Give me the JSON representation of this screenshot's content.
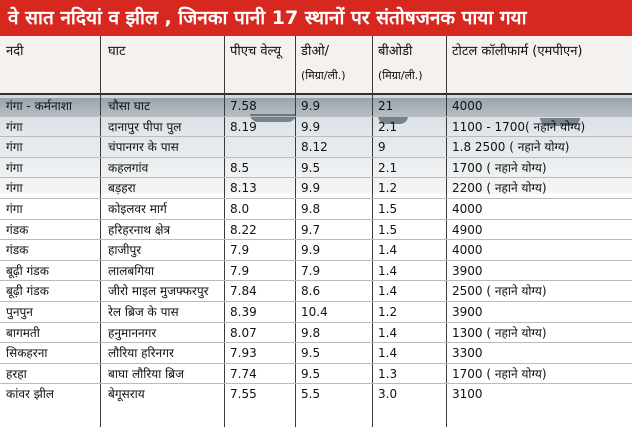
{
  "title": "वे सात नदियां व झील , जिनका पानी 17 स्थानों पर संतोषजनक पाया गया",
  "columns": {
    "river": "नदी",
    "ghat": "घाट",
    "ph": "पीएच वेल्यू",
    "do_line1": "डीओ/",
    "do_line2": "(मिग्रा/ली.)",
    "bod_line1": "बीओडी",
    "bod_line2": "(मिग्रा/ली.)",
    "coliform": "टोटल कॉलीफार्म (एमपीएन)"
  },
  "rows": [
    {
      "river": "गंगा - कर्मनाशा",
      "ghat": "चौसा घाट",
      "ph": "7.58",
      "do": "9.9",
      "bod": "21",
      "coliform": "4000"
    },
    {
      "river": "गंगा",
      "ghat": "दानापुर पीपा पुल",
      "ph": "8.19",
      "do": "9.9",
      "bod": "2.1",
      "coliform": "1100 - 1700( नहाने योग्य)"
    },
    {
      "river": "गंगा",
      "ghat": " चंपानगर के पास",
      "ph": "",
      "do": "8.12",
      "bod": "9",
      "coliform": "1.8 2500 ( नहाने योग्य)"
    },
    {
      "river": "गंगा",
      "ghat": "कहलगांव",
      "ph": "8.5",
      "do": "9.5",
      "bod": "2.1",
      "coliform": "1700 ( नहाने योग्य)"
    },
    {
      "river": "गंगा",
      "ghat": "बड़हरा",
      "ph": "8.13",
      "do": "9.9",
      "bod": "1.2",
      "coliform": "2200 ( नहाने योग्य)"
    },
    {
      "river": "गंगा",
      "ghat": "कोइलवर मार्ग",
      "ph": "8.0",
      "do": "9.8",
      "bod": "1.5",
      "coliform": "4000"
    },
    {
      "river": "गंडक",
      "ghat": "हरिहरनाथ क्षेत्र",
      "ph": "8.22",
      "do": "9.7",
      "bod": "1.5",
      "coliform": "4900"
    },
    {
      "river": "गंडक",
      "ghat": "हाजीपुर",
      "ph": "7.9",
      "do": "9.9",
      "bod": "1.4",
      "coliform": "4000"
    },
    {
      "river": "बूढ़ी गंडक",
      "ghat": "लालबगिया",
      "ph": "7.9",
      "do": "7.9",
      "bod": "1.4",
      "coliform": "3900"
    },
    {
      "river": "बूढ़ी गंडक",
      "ghat": "जीरो माइल मुजफ्फरपुर",
      "ph": "7.84",
      "do": "8.6",
      "bod": "1.4",
      "coliform": "2500 ( नहाने योग्य)"
    },
    {
      "river": "पुनपुन",
      "ghat": "रेल ब्रिज के पास",
      "ph": "8.39",
      "do": "10.4",
      "bod": "1.2",
      "coliform": "3900"
    },
    {
      "river": "बागमती",
      "ghat": "हनुमाननगर",
      "ph": "8.07",
      "do": "9.8",
      "bod": "1.4",
      "coliform": "1300 ( नहाने योग्य)"
    },
    {
      "river": "सिकहरना",
      "ghat": "लौरिया हरिनगर",
      "ph": "7.93",
      "do": "9.5",
      "bod": "1.4",
      "coliform": "3300"
    },
    {
      "river": "हरहा",
      "ghat": "बाघा लौरिया ब्रिज",
      "ph": "7.74",
      "do": "9.5",
      "bod": "1.3",
      "coliform": "1700 ( नहाने योग्य)"
    },
    {
      "river": "कांवर झील",
      "ghat": "बेगूसराय",
      "ph": "7.55",
      "do": "5.5",
      "bod": "3.0",
      "coliform": "3100"
    }
  ],
  "colors": {
    "title_bg": "#d7281f",
    "title_text": "#ffffff"
  }
}
